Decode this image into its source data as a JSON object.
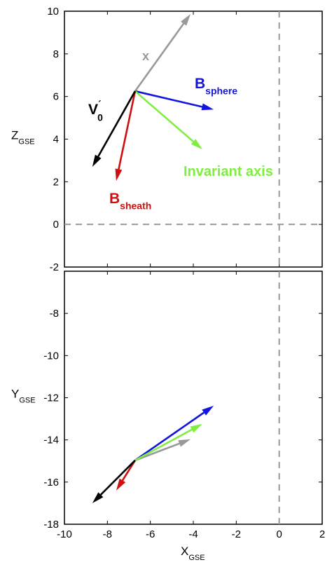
{
  "chart_data": [
    {
      "type": "vector",
      "xlim": [
        -10,
        2
      ],
      "ylim": [
        -2,
        10
      ],
      "xticks": [
        -10,
        -8,
        -6,
        -4,
        -2,
        0,
        2
      ],
      "yticks": [
        -2,
        0,
        2,
        4,
        6,
        8,
        10
      ],
      "show_xtick_labels": false,
      "ylabel": {
        "text": "Z",
        "sub": "GSE"
      },
      "ref_lines": {
        "x": 0,
        "y": 0
      },
      "vectors": [
        {
          "color": "#999999",
          "x": [
            -6.71,
            -4.13
          ],
          "y": [
            6.25,
            9.87
          ],
          "label": {
            "text": "x"
          }
        },
        {
          "color": "#1414e0",
          "x": [
            -6.71,
            -3.05
          ],
          "y": [
            6.25,
            5.39
          ],
          "label": {
            "text": "B",
            "sub": "sphere"
          }
        },
        {
          "color": "#80ee40",
          "x": [
            -6.71,
            -3.58
          ],
          "y": [
            6.25,
            3.52
          ],
          "label": {
            "text": "Invariant axis"
          }
        },
        {
          "color": "#d01010",
          "x": [
            -6.71,
            -7.59
          ],
          "y": [
            6.25,
            2.04
          ],
          "label": {
            "text": "B",
            "sub": "sheath"
          }
        },
        {
          "color": "#000000",
          "x": [
            -6.71,
            -8.7
          ],
          "y": [
            6.25,
            2.7
          ],
          "label": {
            "text": "V",
            "sub": "0",
            "sup": "´"
          }
        }
      ]
    },
    {
      "type": "vector",
      "xlim": [
        -10,
        2
      ],
      "ylim": [
        -18,
        -6
      ],
      "xticks": [
        -10,
        -8,
        -6,
        -4,
        -2,
        0,
        2
      ],
      "yticks": [
        -18,
        -16,
        -14,
        -12,
        -10,
        -8
      ],
      "show_xtick_labels": true,
      "xlabel": {
        "text": "X",
        "sub": "GSE"
      },
      "ylabel": {
        "text": "Y",
        "sub": "GSE"
      },
      "ref_lines": {
        "x": 0
      },
      "vectors": [
        {
          "color": "#999999",
          "x": [
            -6.71,
            -4.13
          ],
          "y": [
            -14.97,
            -13.97
          ]
        },
        {
          "color": "#1414e0",
          "x": [
            -6.71,
            -3.05
          ],
          "y": [
            -14.97,
            -12.38
          ]
        },
        {
          "color": "#80ee40",
          "x": [
            -6.71,
            -3.58
          ],
          "y": [
            -14.97,
            -13.24
          ]
        },
        {
          "color": "#d01010",
          "x": [
            -6.71,
            -7.59
          ],
          "y": [
            -14.97,
            -16.4
          ]
        },
        {
          "color": "#000000",
          "x": [
            -6.71,
            -8.7
          ],
          "y": [
            -14.97,
            -17.0
          ]
        }
      ]
    }
  ]
}
